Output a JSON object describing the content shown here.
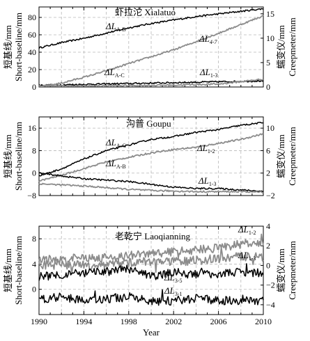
{
  "chart_data": [
    {
      "type": "line",
      "title": "虾拉沱  Xialatuo",
      "xlim": [
        1990,
        2010
      ],
      "ylim": [
        0,
        20
      ],
      "y2lim": [
        0,
        16
      ],
      "yticks": [
        0,
        20,
        40,
        60,
        80
      ],
      "y2ticks": [
        0,
        5,
        10,
        15
      ],
      "ylim_real": [
        0,
        92
      ],
      "y2lim_real": [
        0,
        16.4
      ],
      "ylabel": [
        "短基线/mm",
        "Short-baseline/mm"
      ],
      "y2label": [
        "蠕变仪/mm",
        "Creepmeter/mm"
      ],
      "grid": true,
      "series": [
        {
          "name": "ΔL_A-B",
          "label_main": "ΔL",
          "label_sub": "A-B",
          "axis": "left",
          "color": "#000000",
          "x": [
            1990,
            1992,
            1994,
            1996,
            1998,
            2000,
            2002,
            2004,
            2006,
            2008,
            2010
          ],
          "y": [
            45,
            51,
            56,
            62,
            68,
            73,
            77,
            81,
            84,
            87,
            90
          ]
        },
        {
          "name": "ΔL_A-C",
          "label_main": "ΔL",
          "label_sub": "A-C",
          "axis": "left",
          "color": "#000000",
          "x": [
            1990,
            1994,
            1998,
            2002,
            2006,
            2010
          ],
          "y": [
            2,
            3,
            4,
            5,
            6,
            7
          ]
        },
        {
          "name": "ΔL_4-7",
          "label_main": "ΔL",
          "label_sub": "4-7",
          "axis": "right",
          "color": "#888888",
          "x": [
            1990,
            1992,
            1994,
            1996,
            1998,
            2000,
            2002,
            2004,
            2006,
            2008,
            2010
          ],
          "y": [
            0,
            0.8,
            2.0,
            3.3,
            4.8,
            6.2,
            7.6,
            9.3,
            11.0,
            12.8,
            14.6
          ]
        },
        {
          "name": "ΔL_1-3",
          "label_main": "ΔL",
          "label_sub": "1-3",
          "axis": "right",
          "color": "#888888",
          "x": [
            1990,
            1994,
            1998,
            2002,
            2006,
            2010
          ],
          "y": [
            0.2,
            0.2,
            0.3,
            0.4,
            0.6,
            1.6
          ]
        }
      ]
    },
    {
      "type": "line",
      "title": "沟普  Goupu",
      "xlim": [
        1990,
        2010
      ],
      "yticks": [
        -8,
        0,
        8,
        16
      ],
      "y2ticks": [
        -2,
        2,
        6,
        10
      ],
      "ylim_real": [
        -8,
        20
      ],
      "y2lim_real": [
        -2,
        12
      ],
      "ylabel": [
        "短基线/mm",
        "Short-baseline/mm"
      ],
      "y2label": [
        "蠕变仪/mm",
        "Creepmeter/mm"
      ],
      "grid": true,
      "series": [
        {
          "name": "ΔL_A-C",
          "label_main": "ΔL",
          "label_sub": "A-C",
          "axis": "left",
          "color": "#000000",
          "x": [
            1990,
            1992,
            1994,
            1996,
            1998,
            2000,
            2002,
            2004,
            2006,
            2008,
            2010
          ],
          "y": [
            -1,
            1.5,
            5,
            8,
            10,
            12,
            13,
            14.5,
            15.5,
            17,
            18
          ]
        },
        {
          "name": "ΔL_1-2",
          "label_main": "ΔL",
          "label_sub": "1-2",
          "axis": "right",
          "color": "#888888",
          "x": [
            1990,
            1992,
            1994,
            1996,
            1998,
            2000,
            2002,
            2004,
            2006,
            2008,
            2010
          ],
          "y": [
            0.6,
            1.6,
            2.8,
            4.0,
            4.8,
            5.6,
            6.2,
            6.6,
            7.3,
            8.0,
            9.0
          ]
        },
        {
          "name": "ΔL_A-B",
          "label_main": "ΔL",
          "label_sub": "A-B",
          "axis": "left",
          "color": "#000000",
          "x": [
            1990,
            1992,
            1994,
            1996,
            1998,
            2000,
            2002,
            2004,
            2006,
            2008,
            2010
          ],
          "y": [
            0,
            -1,
            -2,
            -2.5,
            -3,
            -4,
            -5,
            -5.5,
            -5.5,
            -6,
            -6.5
          ]
        },
        {
          "name": "ΔL_1-3",
          "label_main": "ΔL",
          "label_sub": "1-3",
          "axis": "right",
          "color": "#888888",
          "x": [
            1990,
            1992,
            1994,
            1996,
            1998,
            2000,
            2002,
            2004,
            2006,
            2008,
            2010
          ],
          "y": [
            0.1,
            -0.1,
            -0.3,
            -0.6,
            -0.9,
            -1.1,
            -1.2,
            -1.3,
            -1.3,
            -1.3,
            -1.4
          ]
        }
      ]
    },
    {
      "type": "line",
      "title": "老乾宁  Laoqianning",
      "xlim": [
        1990,
        2010
      ],
      "xticks": [
        1990,
        1994,
        1998,
        2002,
        2006,
        2010
      ],
      "xlabel": "Year",
      "yticks": [
        0,
        4,
        8
      ],
      "y2ticks": [
        -4,
        -2,
        0,
        2,
        4
      ],
      "ylim_real": [
        -4,
        10
      ],
      "y2lim_real": [
        -5,
        4
      ],
      "ylabel": [
        "短基线/mm",
        "Short-baseline/mm"
      ],
      "y2label": [
        "蠕变仪/mm",
        "Creepmeter/mm"
      ],
      "grid": true,
      "series": [
        {
          "name": "ΔL_1-2",
          "label_main": "ΔL",
          "label_sub": "1-2",
          "axis": "right",
          "color": "#888888",
          "x": [
            1990,
            1992,
            1994,
            1996,
            1998,
            2000,
            2002,
            2004,
            2006,
            2008,
            2010
          ],
          "y": [
            0.6,
            0.6,
            0.8,
            0.8,
            1.0,
            1.2,
            1.4,
            1.6,
            1.8,
            2.2,
            2.2
          ]
        },
        {
          "name": "ΔL_1-3",
          "label_main": "ΔL",
          "label_sub": "1-3",
          "axis": "right",
          "color": "#888888",
          "x": [
            1990,
            1992,
            1994,
            1996,
            1998,
            2000,
            2002,
            2004,
            2006,
            2008,
            2010
          ],
          "y": [
            0.0,
            0.1,
            0.0,
            0.1,
            0.3,
            0.4,
            0.4,
            0.5,
            0.7,
            0.9,
            0.9
          ]
        },
        {
          "name": "ΔL_3-5",
          "label_main": "ΔL",
          "label_sub": "3-5",
          "axis": "left",
          "color": "#000000",
          "x": [
            1990,
            1992,
            1994,
            1996,
            1998,
            2000,
            2002,
            2004,
            2006,
            2008,
            2010
          ],
          "y": [
            2,
            2.4,
            2.5,
            2.8,
            3.2,
            2.0,
            2.7,
            2.4,
            2.5,
            2.7,
            2.6
          ]
        },
        {
          "name": "ΔL_3-1",
          "label_main": "ΔL",
          "label_sub": "3-1",
          "axis": "left",
          "color": "#000000",
          "x": [
            1990,
            1992,
            1994,
            1996,
            1998,
            2000,
            2002,
            2004,
            2006,
            2008,
            2010
          ],
          "y": [
            -1.5,
            -1.2,
            -1.8,
            -1.5,
            -1.2,
            -2.0,
            -1.8,
            -1.5,
            -1.8,
            -1.6,
            -1.8
          ]
        }
      ]
    }
  ]
}
